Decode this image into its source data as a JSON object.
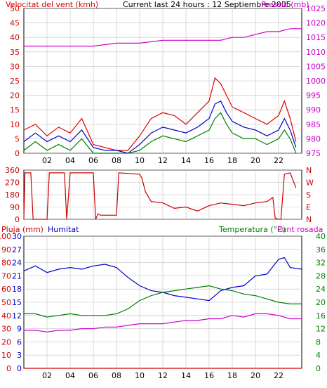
{
  "colors": {
    "wind": "#e00000",
    "wind_avg": "#0000cc",
    "wind_low": "#008000",
    "pressure": "#cc00cc",
    "direction": "#cc0000",
    "rain": "#cc0000",
    "humidity": "#0000cc",
    "temperature": "#008000",
    "dewpoint": "#cc00cc",
    "grid": "#c0c0c0",
    "axis_text": "#000000"
  },
  "chart_data": [
    {
      "type": "line",
      "title": "Current last 24 hours : 12 Septiembre 2005",
      "ylabel_left": "Velocitat del vent (kmh)",
      "ylabel_right": "Pressió (mb)",
      "x_ticks": [
        "02",
        "04",
        "06",
        "08",
        "10",
        "12",
        "14",
        "16",
        "18",
        "20",
        "22"
      ],
      "y_left_ticks": [
        "0",
        "5",
        "10",
        "15",
        "20",
        "25",
        "30",
        "35",
        "40",
        "45",
        "50"
      ],
      "y_right_ticks": [
        "975",
        "980",
        "985",
        "990",
        "995",
        "1000",
        "1005",
        "1010",
        "1015",
        "1020",
        "1025"
      ],
      "ylim_left": [
        0,
        50
      ],
      "ylim_right": [
        975,
        1025
      ],
      "xlim": [
        0,
        24
      ],
      "series": [
        {
          "key": "wind",
          "axis": "left",
          "x": [
            0,
            1,
            2,
            3,
            4,
            5,
            6,
            7,
            8,
            9,
            10,
            11,
            12,
            13,
            14,
            15,
            16,
            16.5,
            17,
            17.5,
            18,
            19,
            20,
            21,
            22,
            22.5,
            23,
            23.5
          ],
          "y": [
            8,
            10,
            6,
            9,
            7,
            12,
            3,
            2,
            1,
            1,
            6,
            12,
            14,
            13,
            10,
            14,
            18,
            26,
            24,
            20,
            16,
            14,
            12,
            10,
            13,
            18,
            12,
            4
          ]
        },
        {
          "key": "wind_avg",
          "axis": "left",
          "x": [
            0,
            1,
            2,
            3,
            4,
            5,
            6,
            7,
            8,
            9,
            10,
            11,
            12,
            13,
            14,
            15,
            16,
            16.5,
            17,
            17.5,
            18,
            19,
            20,
            21,
            22,
            22.5,
            23,
            23.5
          ],
          "y": [
            4,
            7,
            4,
            6,
            4,
            8,
            2,
            1,
            1,
            0,
            3,
            7,
            9,
            8,
            7,
            9,
            12,
            17,
            18,
            14,
            11,
            9,
            8,
            6,
            8,
            12,
            8,
            2
          ]
        },
        {
          "key": "wind_low",
          "axis": "left",
          "x": [
            0,
            1,
            2,
            3,
            4,
            5,
            6,
            7,
            8,
            9,
            10,
            11,
            12,
            13,
            14,
            15,
            16,
            16.5,
            17,
            17.5,
            18,
            19,
            20,
            21,
            22,
            22.5,
            23,
            23.5
          ],
          "y": [
            1,
            4,
            1,
            3,
            1,
            5,
            0,
            0,
            0,
            0,
            1,
            4,
            6,
            5,
            4,
            6,
            8,
            12,
            14,
            10,
            7,
            5,
            5,
            3,
            5,
            8,
            5,
            0
          ]
        },
        {
          "key": "pressure",
          "axis": "right",
          "x": [
            0,
            2,
            4,
            6,
            8,
            10,
            12,
            14,
            16,
            17,
            18,
            19,
            20,
            21,
            22,
            23,
            24
          ],
          "y": [
            1012,
            1012,
            1012,
            1012,
            1013,
            1013,
            1014,
            1014,
            1014,
            1014,
            1015,
            1015,
            1016,
            1017,
            1017,
            1018,
            1018
          ]
        }
      ]
    },
    {
      "type": "line",
      "ylabel_right_ticks": [
        "N",
        "W",
        "S",
        "E",
        "N"
      ],
      "y_ticks": [
        "0",
        "90",
        "180",
        "270",
        "360"
      ],
      "ylim": [
        0,
        360
      ],
      "xlim": [
        0,
        24
      ],
      "series": [
        {
          "key": "direction",
          "x": [
            0,
            0.1,
            0.6,
            0.8,
            2,
            2.2,
            3.5,
            3.7,
            4,
            6,
            6.2,
            6.4,
            6.6,
            7,
            8,
            8.2,
            10,
            10.2,
            10.5,
            11,
            12,
            13,
            14,
            15,
            16,
            17,
            18,
            19,
            20,
            21,
            21.5,
            21.7,
            22,
            22.2,
            22.5,
            23,
            23.5
          ],
          "y": [
            0,
            340,
            340,
            0,
            0,
            340,
            340,
            0,
            340,
            340,
            0,
            40,
            30,
            30,
            30,
            340,
            330,
            300,
            200,
            130,
            120,
            80,
            90,
            60,
            100,
            120,
            110,
            100,
            120,
            130,
            160,
            10,
            0,
            0,
            330,
            340,
            230
          ]
        }
      ]
    },
    {
      "type": "line",
      "ylabel_rain": "Pluja (mm)",
      "ylabel_humidity": "Humitat",
      "ylabel_temperature": "Temperatura (°C)",
      "ylabel_dewpoint": "Punt rosada",
      "rain_ticks": [
        "0",
        "10",
        "20",
        "30",
        "40",
        "50",
        "60",
        "70",
        "80",
        "90",
        "100"
      ],
      "humidity_ticks": [
        "0",
        "3",
        "6",
        "9",
        "12",
        "15",
        "18",
        "21",
        "24",
        "27",
        "30"
      ],
      "temp_ticks": [
        "0",
        "4",
        "8",
        "12",
        "16",
        "20",
        "24",
        "28",
        "32",
        "36",
        "40"
      ],
      "xlim": [
        0,
        24
      ],
      "ylim": [
        0,
        40
      ],
      "series": [
        {
          "key": "rain",
          "x": [
            0,
            24
          ],
          "y": [
            0,
            0
          ]
        },
        {
          "key": "humidity",
          "x": [
            0,
            1,
            2,
            3,
            4,
            5,
            6,
            7,
            8,
            9,
            10,
            11,
            12,
            13,
            14,
            15,
            16,
            16.5,
            17,
            18,
            19,
            20,
            21,
            22,
            22.5,
            23,
            24
          ],
          "y": [
            29.5,
            31,
            29,
            30,
            30.5,
            30,
            31,
            31.5,
            30.5,
            27.5,
            25,
            23.5,
            23,
            22,
            21.5,
            21,
            20.5,
            22,
            23.5,
            24.5,
            25,
            28,
            28.5,
            33,
            33.5,
            30.5,
            30
          ]
        },
        {
          "key": "temperature",
          "x": [
            0,
            1,
            2,
            3,
            4,
            5,
            6,
            7,
            8,
            9,
            10,
            11,
            12,
            13,
            14,
            15,
            16,
            17,
            18,
            19,
            20,
            21,
            22,
            23,
            24
          ],
          "y": [
            16.5,
            16.5,
            15.5,
            16,
            16.5,
            16,
            16,
            16,
            16.5,
            18,
            20.5,
            22,
            23,
            23.5,
            24,
            24.5,
            25,
            24,
            23.5,
            22.5,
            22,
            21,
            20,
            19.5,
            19.5
          ]
        },
        {
          "key": "dewpoint",
          "x": [
            0,
            1,
            2,
            3,
            4,
            5,
            6,
            7,
            8,
            9,
            10,
            11,
            12,
            13,
            14,
            15,
            16,
            17,
            18,
            19,
            20,
            21,
            22,
            23,
            24
          ],
          "y": [
            11.5,
            11.5,
            11,
            11.5,
            11.5,
            12,
            12,
            12.5,
            12.5,
            13,
            13.5,
            13.5,
            13.5,
            14,
            14.5,
            14.5,
            15,
            15,
            16,
            15.5,
            16.5,
            16.5,
            16,
            15,
            15
          ]
        }
      ]
    }
  ]
}
